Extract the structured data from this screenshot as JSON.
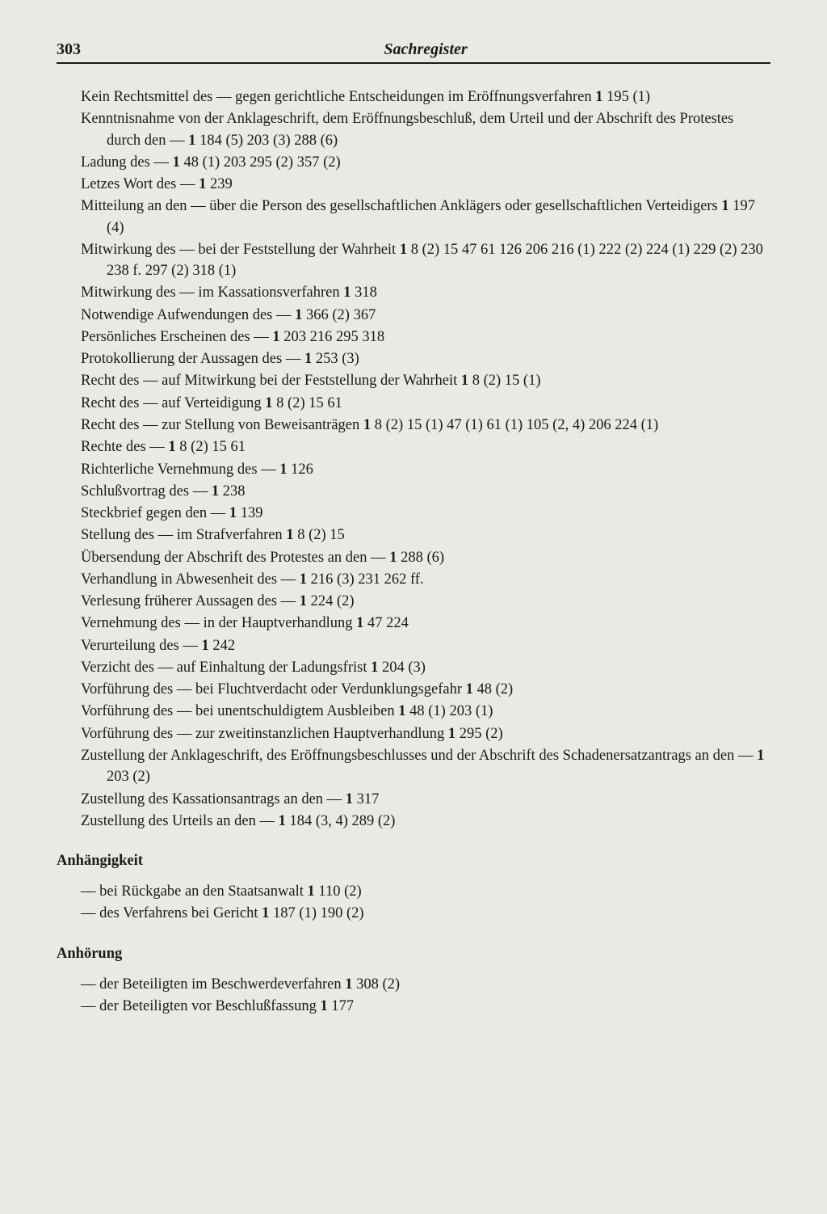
{
  "page_number": "303",
  "page_title": "Sachregister",
  "main_entries": [
    {
      "text": "Kein Rechtsmittel des — gegen gerichtliche Entscheidungen im Eröffnungsverfahren",
      "refs": "1 195 (1)"
    },
    {
      "text": "Kenntnisnahme von der Anklageschrift, dem Eröffnungsbeschluß, dem Urteil und der Abschrift des Protestes durch den —",
      "refs": "1 184 (5) 203 (3) 288 (6)"
    },
    {
      "text": "Ladung des —",
      "refs": "1 48 (1) 203 295 (2) 357 (2)"
    },
    {
      "text": "Letzes Wort des —",
      "refs": "1 239"
    },
    {
      "text": "Mitteilung an den — über die Person des gesellschaftlichen Anklägers oder gesellschaftlichen Verteidigers",
      "refs": "1 197 (4)"
    },
    {
      "text": "Mitwirkung des — bei der Feststellung der Wahrheit",
      "refs": "1 8 (2) 15 47 61 126 206 216 (1) 222 (2) 224 (1) 229 (2) 230 238 f. 297 (2) 318 (1)"
    },
    {
      "text": "Mitwirkung des — im Kassationsverfahren",
      "refs": "1 318"
    },
    {
      "text": "Notwendige Aufwendungen des —",
      "refs": "1 366 (2) 367"
    },
    {
      "text": "Persönliches Erscheinen des —",
      "refs": "1 203 216 295 318"
    },
    {
      "text": "Protokollierung der Aussagen des —",
      "refs": "1 253 (3)"
    },
    {
      "text": "Recht des — auf Mitwirkung bei der Feststellung der Wahrheit",
      "refs": "1 8 (2) 15 (1)"
    },
    {
      "text": "Recht des — auf Verteidigung",
      "refs": "1 8 (2) 15 61"
    },
    {
      "text": "Recht des — zur Stellung von Beweisanträgen",
      "refs": "1 8 (2) 15 (1) 47 (1) 61 (1) 105 (2, 4) 206 224 (1)"
    },
    {
      "text": "Rechte des —",
      "refs": "1 8 (2) 15 61"
    },
    {
      "text": "Richterliche Vernehmung des —",
      "refs": "1 126"
    },
    {
      "text": "Schlußvortrag des —",
      "refs": "1 238"
    },
    {
      "text": "Steckbrief gegen den —",
      "refs": "1 139"
    },
    {
      "text": "Stellung des — im Strafverfahren",
      "refs": "1 8 (2) 15"
    },
    {
      "text": "Übersendung der Abschrift des Protestes an den —",
      "refs": "1 288 (6)"
    },
    {
      "text": "Verhandlung in Abwesenheit des —",
      "refs": "1 216 (3) 231 262 ff."
    },
    {
      "text": "Verlesung früherer Aussagen des —",
      "refs": "1 224 (2)"
    },
    {
      "text": "Vernehmung des — in der Hauptverhandlung",
      "refs": "1 47 224"
    },
    {
      "text": "Verurteilung des —",
      "refs": "1 242"
    },
    {
      "text": "Verzicht des — auf Einhaltung der Ladungsfrist",
      "refs": "1 204 (3)"
    },
    {
      "text": "Vorführung des — bei Fluchtverdacht oder Verdunklungsgefahr",
      "refs": "1 48 (2)"
    },
    {
      "text": "Vorführung des — bei unentschuldigtem Ausbleiben",
      "refs": "1 48 (1) 203 (1)"
    },
    {
      "text": "Vorführung des — zur zweitinstanzlichen Hauptverhandlung",
      "refs": "1 295 (2)"
    },
    {
      "text": "Zustellung der Anklageschrift, des Eröffnungsbeschlusses und der Abschrift des Schadenersatzantrags an den —",
      "refs": "1 203 (2)"
    },
    {
      "text": "Zustellung des Kassationsantrags an den —",
      "refs": "1 317"
    },
    {
      "text": "Zustellung des Urteils an den —",
      "refs": "1 184 (3, 4) 289 (2)"
    }
  ],
  "sections": [
    {
      "heading": "Anhängigkeit",
      "entries": [
        {
          "text": "— bei Rückgabe an den Staatsanwalt",
          "refs": "1 110 (2)"
        },
        {
          "text": "— des Verfahrens bei Gericht",
          "refs": "1 187 (1) 190 (2)"
        }
      ]
    },
    {
      "heading": "Anhörung",
      "entries": [
        {
          "text": "— der Beteiligten im Beschwerdeverfahren",
          "refs": "1 308 (2)"
        },
        {
          "text": "— der Beteiligten vor Beschlußfassung",
          "refs": "1 177"
        }
      ]
    }
  ]
}
